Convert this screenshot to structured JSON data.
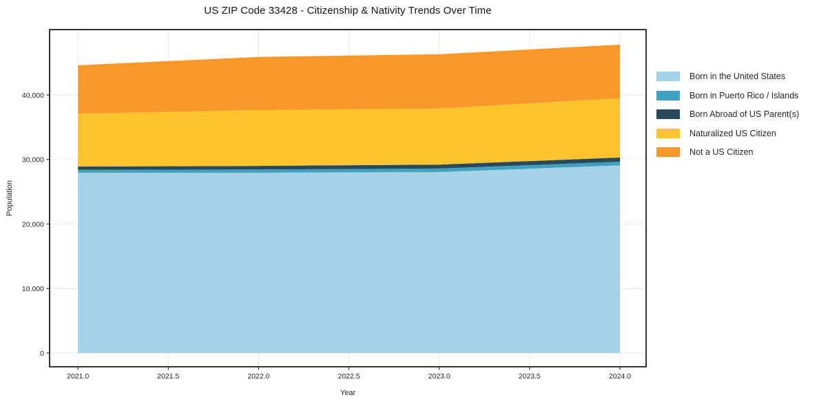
{
  "chart_data": {
    "type": "area",
    "stacked": true,
    "title": "US ZIP Code 33428 - Citizenship & Nativity Trends Over Time",
    "xlabel": "Year",
    "ylabel": "Population",
    "x": [
      2021,
      2022,
      2023,
      2024
    ],
    "series": [
      {
        "name": "Born in the United States",
        "color": "#a5d2e8",
        "values": [
          27950,
          27950,
          28050,
          29100
        ]
      },
      {
        "name": "Born in Puerto Rico / Islands",
        "color": "#3fa0c0",
        "values": [
          450,
          500,
          550,
          550
        ]
      },
      {
        "name": "Born Abroad of US Parent(s)",
        "color": "#29485a",
        "values": [
          500,
          550,
          600,
          650
        ]
      },
      {
        "name": "Naturalized US Citizen",
        "color": "#fdc32d",
        "values": [
          8200,
          8650,
          8700,
          9200
        ]
      },
      {
        "name": "Not a US Citizen",
        "color": "#f8982b",
        "values": [
          7500,
          8250,
          8400,
          8300
        ]
      }
    ],
    "xtick_values": [
      2021.0,
      2021.5,
      2022.0,
      2022.5,
      2023.0,
      2023.5,
      2024.0
    ],
    "xtick_labels": [
      "2021.0",
      "2021.5",
      "2022.0",
      "2022.5",
      "2023.0",
      "2023.5",
      "2024.0"
    ],
    "ytick_values": [
      0,
      10000,
      20000,
      30000,
      40000
    ],
    "ytick_labels": [
      "0",
      "10,000",
      "20,000",
      "30,000",
      "40,000"
    ],
    "xlim": [
      2020.843,
      2024.145
    ],
    "ylim": [
      -2133,
      50133
    ],
    "grid": true,
    "legend_position": "right",
    "colors": {
      "grid": "#e9e9e9",
      "spine": "#000000",
      "tick": "#333333",
      "background": "#ffffff"
    }
  }
}
